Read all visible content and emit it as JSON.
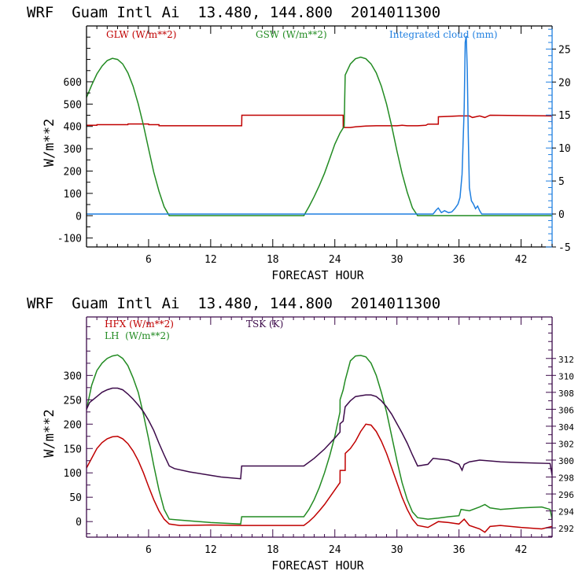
{
  "chart_data": [
    {
      "type": "line",
      "title": "WRF  Guam Intl Ai  13.480, 144.800  2014011300",
      "xlabel": "FORECAST HOUR",
      "ylabel": "W/m**2",
      "y2label": "",
      "xlim": [
        0,
        45
      ],
      "ylim": [
        -140,
        850
      ],
      "y2lim": [
        -5,
        28.5
      ],
      "xticks": [
        6,
        12,
        18,
        24,
        30,
        36,
        42
      ],
      "yticks": [
        -100,
        0,
        100,
        200,
        300,
        400,
        500,
        600
      ],
      "y2ticks": [
        -5,
        0,
        5,
        10,
        15,
        20,
        25
      ],
      "grid": false,
      "legend": "top",
      "axis_color": "#000000",
      "right_axis_color": "#1f7fe0",
      "series": [
        {
          "name": "GLW (W/m**2)",
          "axis": "left",
          "color": "#c00000",
          "x": [
            0,
            1,
            1.01,
            4,
            4.01,
            6,
            6.01,
            7,
            7.01,
            8,
            8.01,
            15,
            15.01,
            24.8,
            24.81,
            25.5,
            26,
            27,
            28,
            30,
            30.5,
            31,
            32,
            32.8,
            33,
            34,
            34.01,
            35,
            36,
            37,
            37.3,
            38,
            38.5,
            39,
            45,
            45.01,
            45.3
          ],
          "values": [
            405,
            405,
            408,
            408,
            411,
            411,
            408,
            408,
            403,
            403,
            403,
            403,
            450,
            450,
            395,
            395,
            398,
            402,
            403,
            403,
            405,
            403,
            403,
            405,
            410,
            410,
            443,
            445,
            447,
            447,
            440,
            447,
            440,
            450,
            447,
            410,
            415
          ]
        },
        {
          "name": "GSW (W/m**2)",
          "axis": "left",
          "color": "#228b22",
          "x": [
            0,
            0.5,
            1,
            1.5,
            2,
            2.5,
            3,
            3.5,
            4,
            4.5,
            5,
            5.5,
            6,
            6.5,
            7,
            7.5,
            8,
            21,
            21.5,
            22,
            22.5,
            23,
            23.5,
            24,
            24.5,
            24.9,
            25,
            25.5,
            26,
            26.5,
            27,
            27.5,
            28,
            28.5,
            29,
            29.5,
            30,
            30.5,
            31,
            31.5,
            32,
            45
          ],
          "values": [
            530,
            585,
            635,
            670,
            695,
            705,
            700,
            680,
            640,
            580,
            500,
            405,
            300,
            195,
            110,
            40,
            0,
            0,
            40,
            85,
            135,
            190,
            255,
            320,
            370,
            400,
            630,
            680,
            703,
            710,
            703,
            680,
            640,
            580,
            500,
            400,
            290,
            190,
            105,
            35,
            0,
            0
          ]
        },
        {
          "name": "Integrated cloud (mm)",
          "axis": "right",
          "color": "#1f7fe0",
          "x": [
            0,
            33.5,
            33.8,
            34,
            34.3,
            34.6,
            35,
            35.3,
            35.6,
            35.9,
            36.1,
            36.3,
            36.5,
            36.6,
            36.7,
            36.8,
            36.9,
            37.0,
            37.2,
            37.4,
            37.6,
            37.8,
            38.0,
            38.2,
            45
          ],
          "values": [
            0,
            0,
            0.6,
            0.9,
            0.2,
            0.5,
            0.2,
            0.3,
            0.8,
            1.5,
            2.5,
            6,
            16,
            26,
            27,
            22,
            12,
            4,
            2,
            1.5,
            0.8,
            1.2,
            0.5,
            0,
            0
          ]
        }
      ]
    },
    {
      "type": "line",
      "title": "WRF  Guam Intl Ai  13.480, 144.800  2014011300",
      "xlabel": "FORECAST HOUR",
      "ylabel": "W/m**2",
      "y2label": "",
      "xlim": [
        0,
        45
      ],
      "ylim": [
        -32,
        420
      ],
      "y2lim": [
        290.9,
        316.9
      ],
      "xticks": [
        6,
        12,
        18,
        24,
        30,
        36,
        42
      ],
      "yticks": [
        0,
        50,
        100,
        150,
        200,
        250,
        300
      ],
      "y2ticks": [
        292,
        294,
        296,
        298,
        300,
        302,
        304,
        306,
        308,
        310,
        312
      ],
      "grid": false,
      "legend": "top-left",
      "axis_color": "#3c0a4a",
      "right_axis_color": "#3c0a4a",
      "series": [
        {
          "name": "HFX (W/m**2)",
          "axis": "left",
          "color": "#c00000",
          "x": [
            0,
            0.5,
            1,
            1.5,
            2,
            2.5,
            3,
            3.5,
            4,
            4.5,
            5,
            5.5,
            6,
            6.5,
            7,
            7.5,
            8,
            9,
            12,
            15,
            18,
            21,
            21.5,
            22,
            22.5,
            23,
            23.5,
            24,
            24.5,
            24.51,
            25,
            25.01,
            25.5,
            26,
            26.5,
            27,
            27.5,
            28,
            28.5,
            29,
            29.5,
            30,
            30.5,
            31,
            31.5,
            32,
            33,
            34,
            35,
            36,
            36.5,
            37,
            38,
            38.5,
            39,
            40,
            42,
            44,
            45
          ],
          "values": [
            110,
            130,
            150,
            162,
            170,
            174,
            175,
            170,
            160,
            145,
            125,
            100,
            72,
            45,
            22,
            5,
            -5,
            -8,
            -7,
            -8,
            -8,
            -8,
            0,
            10,
            22,
            35,
            50,
            65,
            80,
            105,
            105,
            140,
            150,
            165,
            185,
            200,
            198,
            185,
            165,
            140,
            110,
            80,
            50,
            25,
            5,
            -8,
            -12,
            0,
            -2,
            -5,
            5,
            -8,
            -15,
            -22,
            -10,
            -8,
            -12,
            -15,
            -10
          ]
        },
        {
          "name": "LH  (W/m**2)",
          "axis": "left",
          "color": "#228b22",
          "x": [
            0,
            0.5,
            1,
            1.5,
            2,
            2.5,
            3,
            3.5,
            4,
            4.5,
            5,
            5.5,
            6,
            6.5,
            7,
            7.5,
            8,
            9,
            12,
            14.9,
            15,
            18,
            21,
            21.5,
            22,
            22.5,
            23,
            23.5,
            24,
            24.5,
            24.51,
            24.8,
            25,
            25.5,
            26,
            26.5,
            27,
            27.5,
            28,
            28.5,
            29,
            29.5,
            30,
            30.5,
            31,
            31.5,
            32,
            33,
            34,
            35,
            36,
            36.2,
            37,
            38,
            38.5,
            39,
            40,
            42,
            44,
            44.8,
            45
          ],
          "values": [
            230,
            280,
            310,
            325,
            335,
            340,
            342,
            335,
            320,
            295,
            265,
            220,
            170,
            115,
            65,
            25,
            5,
            3,
            -2,
            -5,
            10,
            10,
            10,
            25,
            45,
            70,
            100,
            135,
            175,
            225,
            250,
            270,
            290,
            330,
            340,
            341,
            338,
            325,
            300,
            265,
            225,
            175,
            125,
            80,
            45,
            20,
            8,
            5,
            7,
            10,
            12,
            25,
            22,
            30,
            35,
            28,
            25,
            28,
            30,
            25,
            5
          ]
        },
        {
          "name": "TSK (K)",
          "axis": "right",
          "color": "#3c0a4a",
          "x": [
            0,
            0.3,
            0.5,
            1,
            1.5,
            2,
            2.5,
            3,
            3.5,
            4,
            4.5,
            5,
            5.5,
            6,
            6.5,
            7,
            7.5,
            8,
            8.5,
            10,
            12,
            13,
            14.9,
            15,
            18,
            21,
            22,
            23,
            24,
            24.5,
            24.51,
            24.8,
            25,
            25.5,
            26,
            27,
            27.5,
            28,
            28.5,
            29,
            29.5,
            30,
            30.5,
            31,
            31.5,
            32,
            33,
            33.5,
            35,
            36,
            36.3,
            36.5,
            37,
            38,
            40,
            42,
            44.8,
            45
          ],
          "values": [
            306,
            306.8,
            307,
            307.5,
            308,
            308.3,
            308.5,
            308.5,
            308.3,
            307.8,
            307.2,
            306.5,
            305.7,
            304.7,
            303.5,
            302,
            300.6,
            299.3,
            299,
            298.6,
            298.2,
            298,
            297.8,
            299.3,
            299.3,
            299.3,
            300.2,
            301.3,
            302.6,
            303.3,
            304.3,
            304.6,
            306.3,
            307,
            307.5,
            307.7,
            307.7,
            307.5,
            307,
            306.3,
            305.4,
            304.3,
            303.2,
            302,
            300.6,
            299.3,
            299.5,
            300.2,
            300,
            299.5,
            298.8,
            299.5,
            299.8,
            300,
            299.8,
            299.7,
            299.6,
            298.2
          ]
        }
      ]
    }
  ]
}
